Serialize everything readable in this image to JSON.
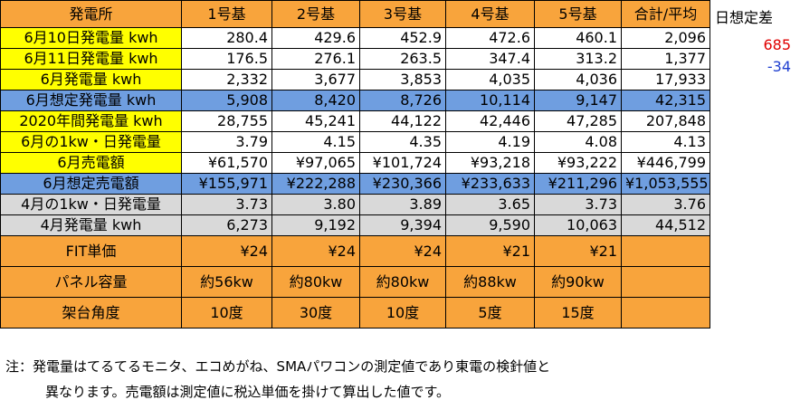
{
  "table": {
    "header": [
      "発電所",
      "1号基",
      "2号基",
      "3号基",
      "4号基",
      "5号基",
      "合計/平均"
    ],
    "rows": [
      {
        "label": "6月10日発電量 kwh",
        "cells": [
          "280.4",
          "429.6",
          "452.9",
          "472.6",
          "460.1",
          "2,096"
        ]
      },
      {
        "label": "6月11日発電量 kwh",
        "cells": [
          "176.5",
          "276.1",
          "263.5",
          "347.4",
          "313.2",
          "1,377"
        ]
      },
      {
        "label": "6月発電量 kwh",
        "cells": [
          "2,332",
          "3,677",
          "3,853",
          "4,035",
          "4,036",
          "17,933"
        ]
      },
      {
        "label": "6月想定発電量 kwh",
        "cells": [
          "5,908",
          "8,420",
          "8,726",
          "10,114",
          "9,147",
          "42,315"
        ]
      },
      {
        "label": "2020年間発電量 kwh",
        "cells": [
          "28,755",
          "45,241",
          "44,122",
          "42,446",
          "47,285",
          "207,848"
        ]
      },
      {
        "label": "6月の1kw・日発電量",
        "cells": [
          "3.79",
          "4.15",
          "4.35",
          "4.19",
          "4.08",
          "4.13"
        ]
      },
      {
        "label": "6月売電額",
        "cells": [
          "¥61,570",
          "¥97,065",
          "¥101,724",
          "¥93,218",
          "¥93,222",
          "¥446,799"
        ]
      },
      {
        "label": "6月想定売電額",
        "cells": [
          "¥155,971",
          "¥222,288",
          "¥230,366",
          "¥233,633",
          "¥211,296",
          "¥1,053,555"
        ]
      },
      {
        "label": "4月の1kw・日発電量",
        "cells": [
          "3.73",
          "3.80",
          "3.89",
          "3.65",
          "3.73",
          "3.76"
        ]
      },
      {
        "label": "4月発電量 kwh",
        "cells": [
          "6,273",
          "9,192",
          "9,394",
          "9,590",
          "10,063",
          "44,512"
        ]
      },
      {
        "label": "FIT単価",
        "cells": [
          "¥24",
          "¥24",
          "¥24",
          "¥21",
          "¥21"
        ]
      },
      {
        "label": "パネル容量",
        "cells": [
          "約56kw",
          "約80kw",
          "約80kw",
          "約88kw",
          "約90kw"
        ]
      },
      {
        "label": "架台角度",
        "cells": [
          "10度",
          "30度",
          "10度",
          "5度",
          "15度"
        ]
      }
    ]
  },
  "side": {
    "title": "日想定差",
    "values": [
      "685",
      "-34"
    ]
  },
  "note": [
    "注：発電量はてるてるモニタ、エコめがね、SMAパワコンの測定値であり東電の検針値と",
    "異なります。売電額は測定値に税込単価を掛けて算出した値です。"
  ]
}
